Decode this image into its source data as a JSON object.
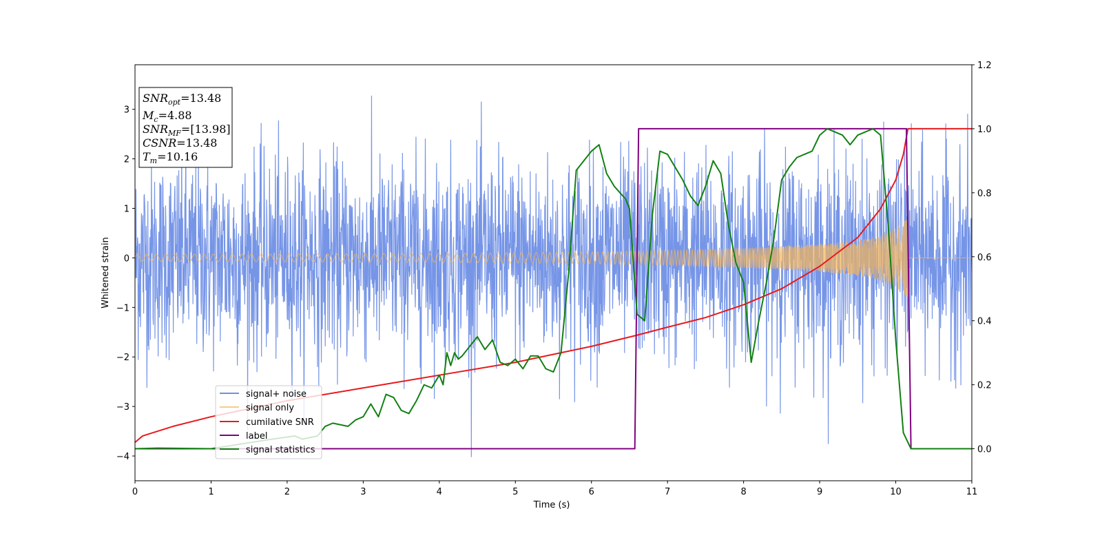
{
  "chart_data": {
    "type": "line",
    "xlabel": "Time (s)",
    "ylabel": "Whitened strain",
    "xlim": [
      0,
      11
    ],
    "ylim": [
      -4.5,
      3.9
    ],
    "y2lim": [
      -0.1,
      1.2
    ],
    "xticks": [
      0,
      1,
      2,
      3,
      4,
      5,
      6,
      7,
      8,
      9,
      10,
      11
    ],
    "yticks": [
      -4,
      -3,
      -2,
      -1,
      0,
      1,
      2,
      3
    ],
    "y2ticks": [
      0.0,
      0.2,
      0.4,
      0.6,
      0.8,
      1.0,
      1.2
    ],
    "grid": false,
    "legend_position": "lower-left",
    "legend": [
      "signal+ noise",
      "signal only",
      "cumilative SNR",
      "label",
      "signal statistics"
    ],
    "annotation": {
      "line1": {
        "base": "SNR",
        "sub": "opt",
        "value": "=13.48"
      },
      "line2": {
        "base": "M",
        "sub": "c",
        "value": "=4.88"
      },
      "line3": {
        "base": "SNR",
        "sub": "MF",
        "value": "=[13.98]"
      },
      "line4": {
        "base": "CSNR",
        "sub": "",
        "value": "=13.48"
      },
      "line5": {
        "base": "T",
        "sub": "m",
        "value": "=10.16"
      }
    },
    "series": [
      {
        "name": "signal+ noise",
        "axis": "left",
        "color": "#6f8fe6",
        "description_kind": "noise",
        "noise_sigma": 1.0,
        "x_range": [
          0,
          11
        ]
      },
      {
        "name": "signal only",
        "axis": "left",
        "color": "#f5b55a",
        "description_kind": "chirp",
        "amp_envelope": {
          "x": [
            0,
            2,
            4,
            6,
            7,
            8,
            9,
            9.5,
            9.8,
            10.0,
            10.1,
            10.16
          ],
          "y": [
            0.07,
            0.08,
            0.09,
            0.12,
            0.15,
            0.2,
            0.28,
            0.36,
            0.45,
            0.6,
            0.72,
            0.8
          ]
        },
        "end_time": 10.16
      },
      {
        "name": "cumilative SNR",
        "axis": "right",
        "color": "#e8191b",
        "x": [
          0,
          0.1,
          0.5,
          1,
          2,
          3,
          4,
          5,
          6,
          6.6,
          7,
          7.5,
          8,
          8.5,
          9,
          9.5,
          9.8,
          10,
          10.1,
          10.16,
          10.5,
          11
        ],
        "y": [
          0.02,
          0.04,
          0.07,
          0.1,
          0.15,
          0.19,
          0.23,
          0.27,
          0.32,
          0.355,
          0.38,
          0.41,
          0.45,
          0.5,
          0.57,
          0.66,
          0.75,
          0.84,
          0.92,
          1.0,
          1.0,
          1.0
        ]
      },
      {
        "name": "label",
        "axis": "right",
        "color": "#800080",
        "x": [
          0,
          6.57,
          6.62,
          10.14,
          10.2,
          11
        ],
        "y": [
          0.0,
          0.0,
          1.0,
          1.0,
          0.0,
          0.0
        ]
      },
      {
        "name": "signal statistics",
        "axis": "right",
        "color": "#118011",
        "x": [
          0,
          0.3,
          1.0,
          1.8,
          2.1,
          2.2,
          2.4,
          2.5,
          2.6,
          2.8,
          2.9,
          3.0,
          3.1,
          3.2,
          3.3,
          3.4,
          3.5,
          3.6,
          3.7,
          3.8,
          3.9,
          4.0,
          4.05,
          4.1,
          4.15,
          4.2,
          4.25,
          4.3,
          4.4,
          4.5,
          4.6,
          4.7,
          4.8,
          4.9,
          5.0,
          5.1,
          5.2,
          5.3,
          5.4,
          5.5,
          5.6,
          5.7,
          5.8,
          5.9,
          6.0,
          6.1,
          6.2,
          6.3,
          6.45,
          6.5,
          6.6,
          6.7,
          6.8,
          6.9,
          7.0,
          7.1,
          7.2,
          7.3,
          7.4,
          7.5,
          7.6,
          7.7,
          7.8,
          7.9,
          8.0,
          8.1,
          8.2,
          8.3,
          8.4,
          8.5,
          8.6,
          8.7,
          8.8,
          8.9,
          9.0,
          9.1,
          9.2,
          9.3,
          9.4,
          9.5,
          9.6,
          9.7,
          9.8,
          9.9,
          10.0,
          10.1,
          10.2,
          11
        ],
        "y": [
          0.0,
          0.002,
          0.0,
          0.03,
          0.04,
          0.03,
          0.04,
          0.07,
          0.08,
          0.07,
          0.09,
          0.1,
          0.14,
          0.1,
          0.17,
          0.16,
          0.12,
          0.11,
          0.15,
          0.2,
          0.19,
          0.23,
          0.2,
          0.3,
          0.26,
          0.3,
          0.28,
          0.29,
          0.32,
          0.35,
          0.31,
          0.34,
          0.27,
          0.26,
          0.28,
          0.25,
          0.29,
          0.29,
          0.25,
          0.24,
          0.3,
          0.55,
          0.87,
          0.9,
          0.93,
          0.95,
          0.86,
          0.82,
          0.78,
          0.75,
          0.42,
          0.4,
          0.73,
          0.93,
          0.92,
          0.88,
          0.84,
          0.79,
          0.76,
          0.82,
          0.9,
          0.86,
          0.7,
          0.58,
          0.52,
          0.27,
          0.4,
          0.52,
          0.66,
          0.84,
          0.88,
          0.91,
          0.92,
          0.93,
          0.98,
          1.0,
          0.99,
          0.98,
          0.95,
          0.98,
          0.99,
          1.0,
          0.98,
          0.7,
          0.34,
          0.05,
          0.0,
          0.0
        ]
      }
    ]
  }
}
